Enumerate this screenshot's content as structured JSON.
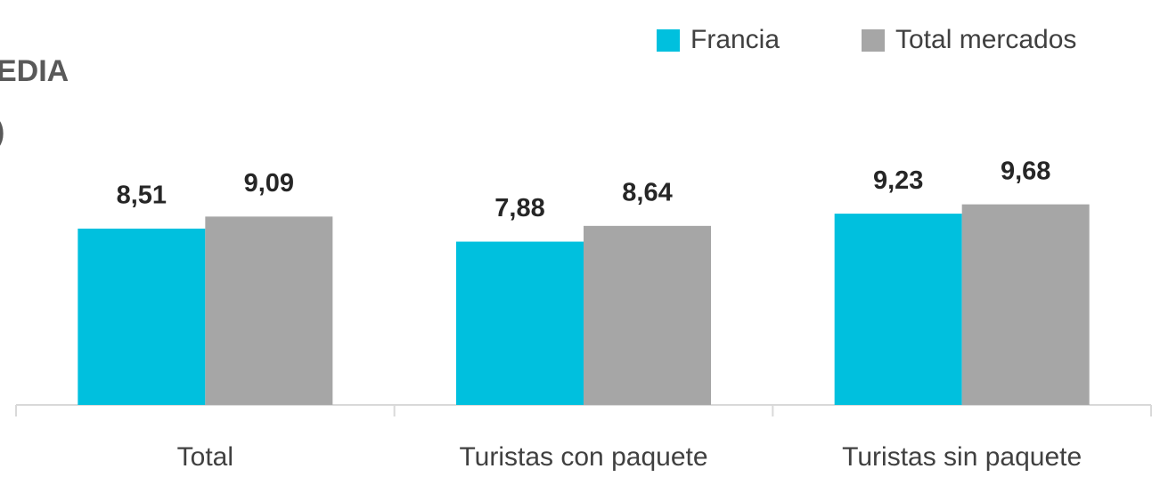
{
  "chart_data": {
    "type": "bar",
    "title": "EDIA",
    "subtitle": ")",
    "categories": [
      "Total",
      "Turistas con paquete",
      "Turistas sin paquete"
    ],
    "series": [
      {
        "name": "Francia",
        "color": "#00c0de",
        "values": [
          8.51,
          7.88,
          9.23
        ],
        "value_labels": [
          "8,51",
          "7,88",
          "9,23"
        ]
      },
      {
        "name": "Total mercados",
        "color": "#a6a6a6",
        "values": [
          9.09,
          8.64,
          9.68
        ],
        "value_labels": [
          "9,09",
          "8,64",
          "9,68"
        ]
      }
    ],
    "ylim": [
      0,
      19.5
    ]
  }
}
